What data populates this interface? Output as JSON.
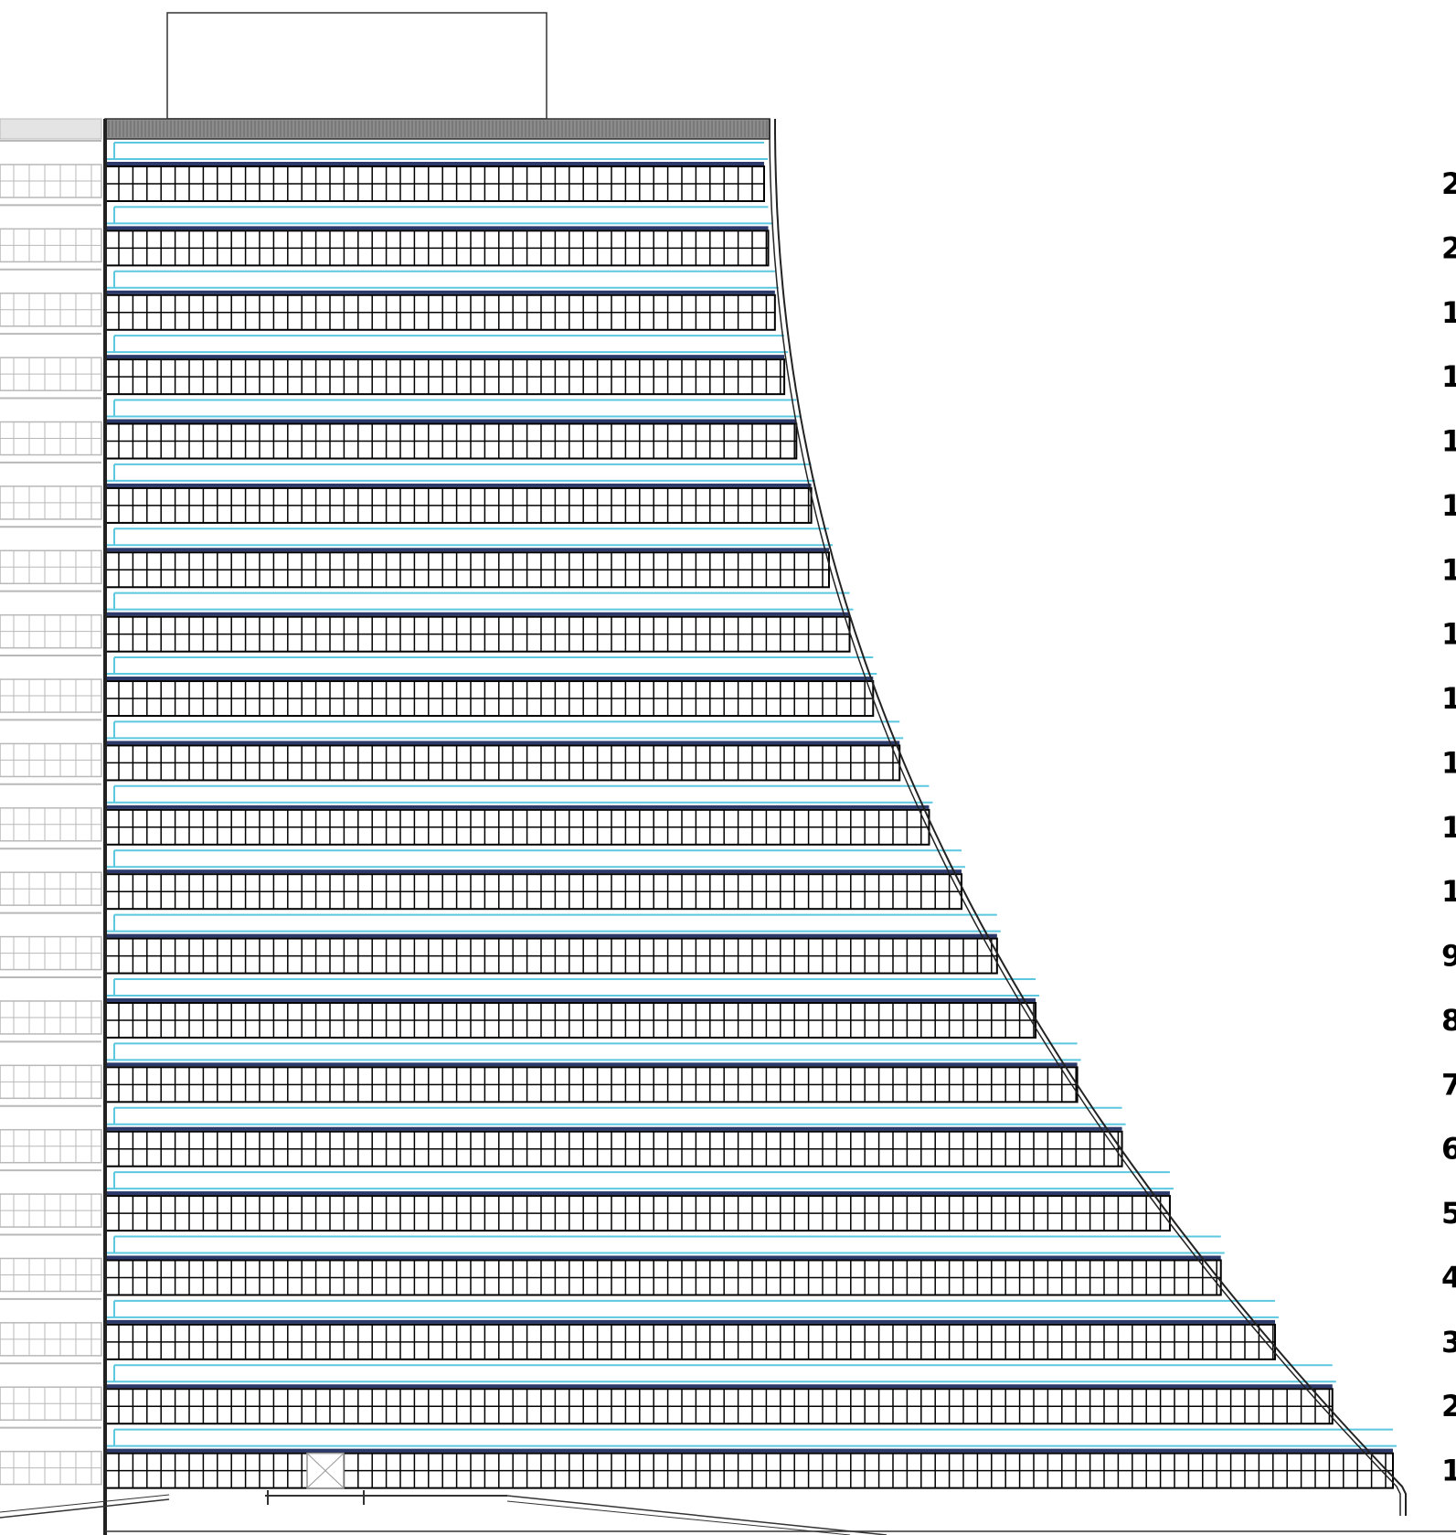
{
  "floors": [
    {
      "label": "2"
    },
    {
      "label": "2"
    },
    {
      "label": "1"
    },
    {
      "label": "1"
    },
    {
      "label": "1"
    },
    {
      "label": "1"
    },
    {
      "label": "1"
    },
    {
      "label": "1"
    },
    {
      "label": "1"
    },
    {
      "label": "1"
    },
    {
      "label": "1"
    },
    {
      "label": "1"
    },
    {
      "label": "9"
    },
    {
      "label": "8"
    },
    {
      "label": "7"
    },
    {
      "label": "6"
    },
    {
      "label": "5"
    },
    {
      "label": "4"
    },
    {
      "label": "3"
    },
    {
      "label": "2"
    },
    {
      "label": "1"
    }
  ],
  "colors": {
    "line": "#000000",
    "glass": "#5bc8e0",
    "slab": "#2b3a6b",
    "neighbor": "#b8b8b8",
    "roof": "#8c8c8c"
  }
}
